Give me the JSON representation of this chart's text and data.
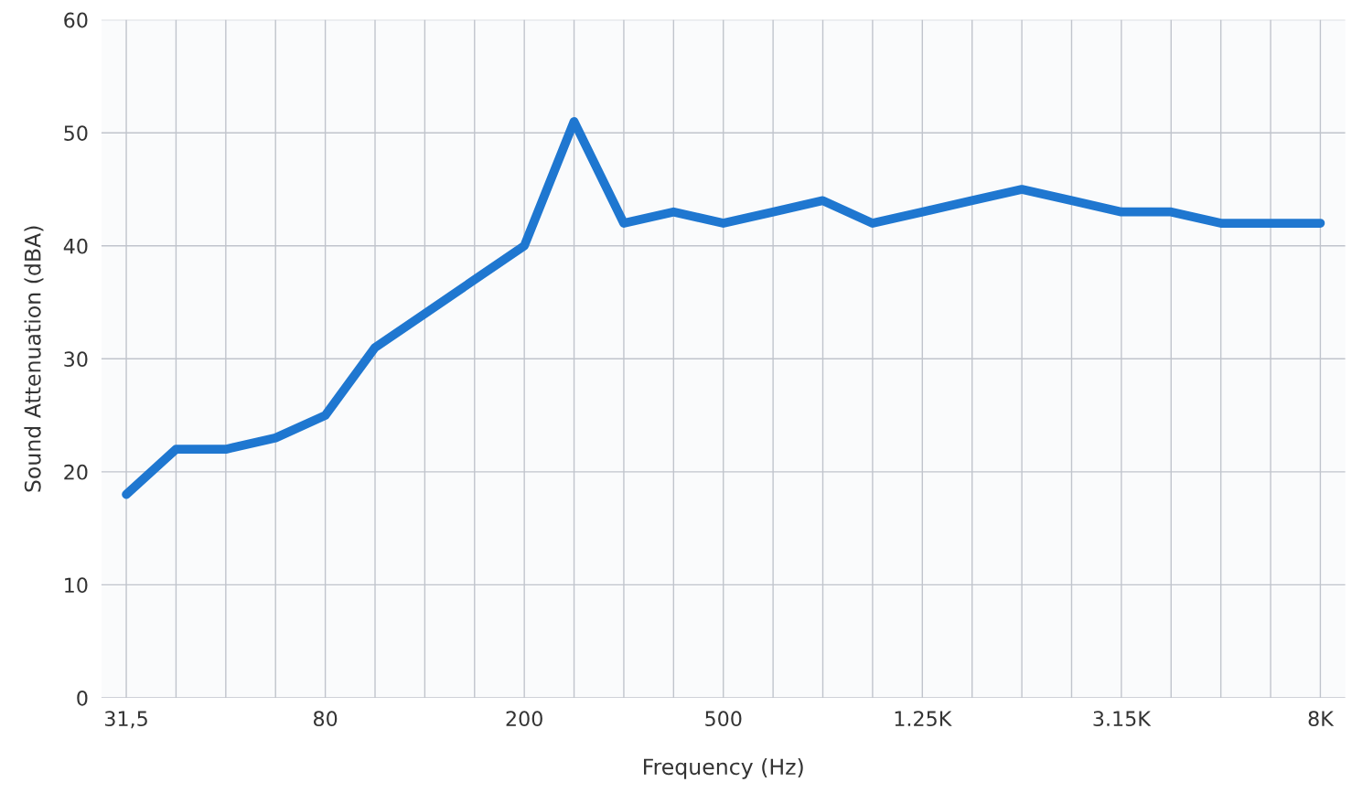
{
  "chart_data": {
    "type": "line",
    "xlabel": "Frequency (Hz)",
    "ylabel": "Sound Attenuation (dBA)",
    "categories": [
      "31,5",
      null,
      null,
      null,
      "80",
      null,
      null,
      null,
      "200",
      null,
      null,
      null,
      "500",
      null,
      null,
      null,
      "1.25K",
      null,
      null,
      null,
      "3.15K",
      null,
      null,
      null,
      "8K"
    ],
    "series": [
      {
        "color": "#1f77d0",
        "values": [
          18,
          22,
          22,
          23,
          25,
          31,
          34,
          37,
          40,
          51,
          42,
          43,
          42,
          43,
          44,
          42,
          43,
          44,
          45,
          44,
          43,
          43,
          42,
          42,
          42
        ]
      }
    ],
    "ylim": [
      0,
      60
    ],
    "yticks": [
      0,
      10,
      20,
      30,
      40,
      50,
      60
    ],
    "grid": true,
    "marker": "none",
    "line_style": "solid"
  }
}
